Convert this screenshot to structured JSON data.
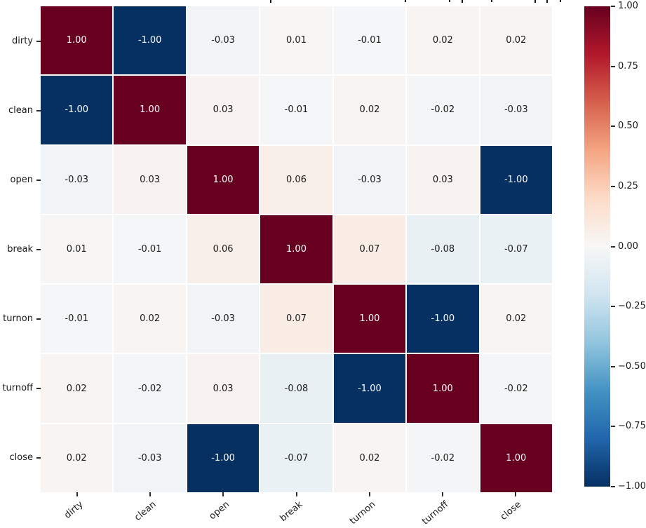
{
  "chart_data": {
    "type": "heatmap",
    "title_visible": "",
    "categories": [
      "dirty",
      "clean",
      "open",
      "break",
      "turnon",
      "turnoff",
      "close"
    ],
    "matrix": [
      [
        1.0,
        -1.0,
        -0.03,
        0.01,
        -0.01,
        0.02,
        0.02
      ],
      [
        -1.0,
        1.0,
        0.03,
        -0.01,
        0.02,
        -0.02,
        -0.03
      ],
      [
        -0.03,
        0.03,
        1.0,
        0.06,
        -0.03,
        0.03,
        -1.0
      ],
      [
        0.01,
        -0.01,
        0.06,
        1.0,
        0.07,
        -0.08,
        -0.07
      ],
      [
        -0.01,
        0.02,
        -0.03,
        0.07,
        1.0,
        -1.0,
        0.02
      ],
      [
        0.02,
        -0.02,
        0.03,
        -0.08,
        -1.0,
        1.0,
        -0.02
      ],
      [
        0.02,
        -0.03,
        -1.0,
        -0.07,
        0.02,
        -0.02,
        1.0
      ]
    ],
    "value_format_decimals": 2,
    "vmin": -1.0,
    "vmax": 1.0,
    "colormap": "RdBu_r",
    "colorbar": {
      "position": "right",
      "tick_labels": [
        "1.00",
        "0.75",
        "0.50",
        "0.25",
        "0.00",
        "−0.25",
        "−0.50",
        "−0.75",
        "−1.00"
      ]
    },
    "grid": false,
    "xlabel": "",
    "ylabel": ""
  },
  "colors": {
    "background": "#ffffff",
    "gridline": "#ffffff",
    "annotation_dark": "#1a1a1a",
    "annotation_light": "#ffffff",
    "tick_color": "#2b2b2b",
    "colormap_stops_top_to_bottom": [
      "#67001f",
      "#b2182b",
      "#d6604d",
      "#f4a582",
      "#fddbc7",
      "#f7f7f7",
      "#d1e5f0",
      "#92c5de",
      "#4393c3",
      "#053061"
    ],
    "colormap_stops_full": [
      "#67001f",
      "#b2182b",
      "#d6604d",
      "#f4a582",
      "#fddbc7",
      "#f7f7f7",
      "#d1e5f0",
      "#92c5de",
      "#4393c3",
      "#2166ac",
      "#053061"
    ]
  }
}
